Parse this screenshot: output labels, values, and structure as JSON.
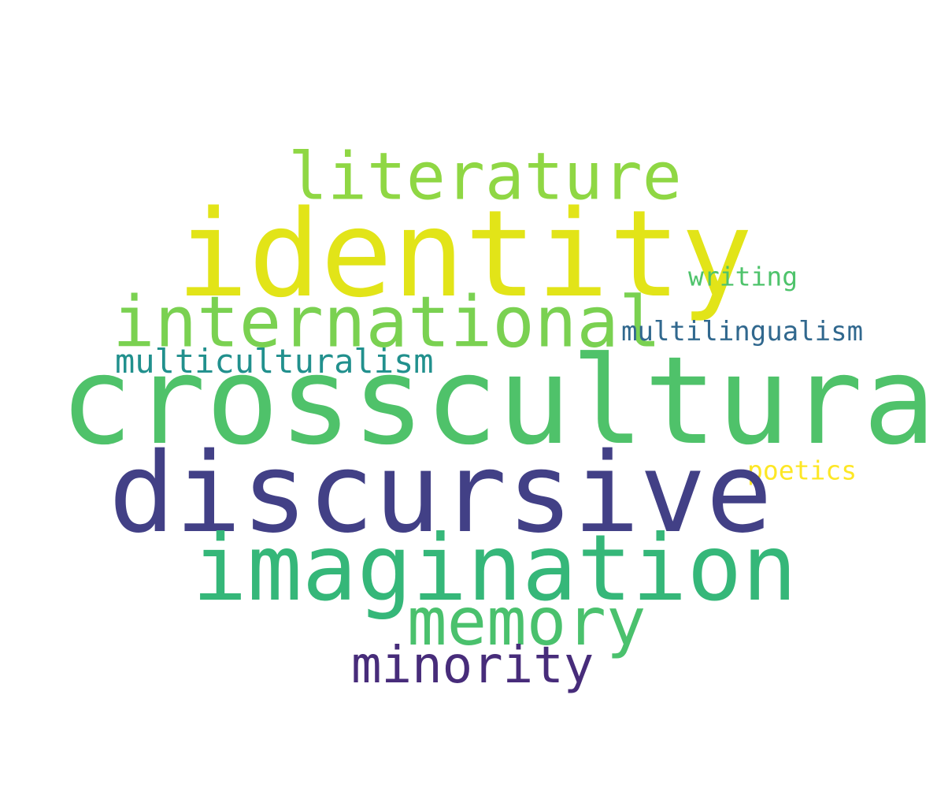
{
  "words": [
    {
      "text": "literature",
      "color": "#8fd744"
    },
    {
      "text": "identity",
      "color": "#e2e418"
    },
    {
      "text": "writing",
      "color": "#4ec36b"
    },
    {
      "text": "international",
      "color": "#7ad151"
    },
    {
      "text": "multilingualism",
      "color": "#31688e"
    },
    {
      "text": "multiculturalism",
      "color": "#21908d"
    },
    {
      "text": "crosscultural",
      "color": "#4fc26a"
    },
    {
      "text": "poetics",
      "color": "#fde725"
    },
    {
      "text": "discursive",
      "color": "#424086"
    },
    {
      "text": "imagination",
      "color": "#35b779"
    },
    {
      "text": "memory",
      "color": "#4ac16d"
    },
    {
      "text": "minority",
      "color": "#472c7a"
    }
  ]
}
